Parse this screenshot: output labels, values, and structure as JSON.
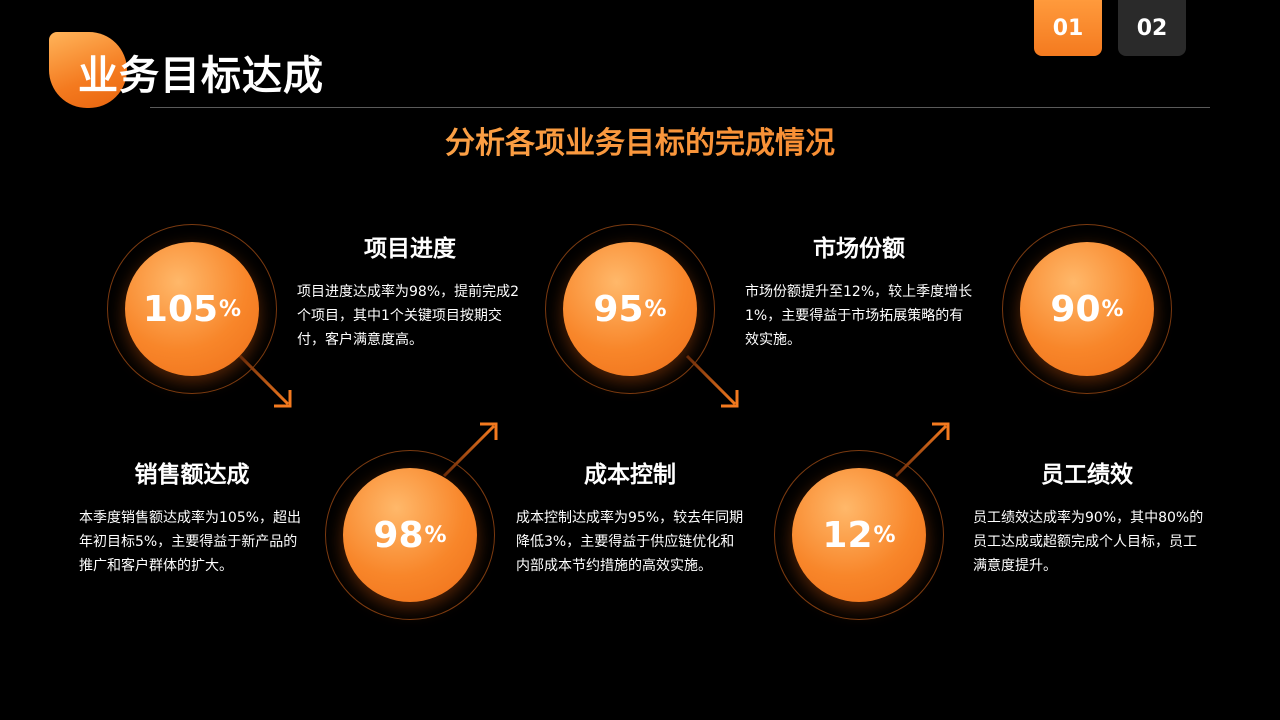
{
  "header": {
    "title": "业务目标达成",
    "subtitle": "分析各项业务目标的完成情况"
  },
  "tabs": [
    {
      "label": "01",
      "active": true
    },
    {
      "label": "02",
      "active": false
    }
  ],
  "colors": {
    "accent": "#f47a1f",
    "accent_light": "#ffb45a",
    "background": "#000000",
    "tab_inactive": "#2a2a2a"
  },
  "metrics": [
    {
      "value": "105",
      "unit": "%",
      "heading": "销售额达成",
      "text": "本季度销售额达成率为105%，超出年初目标5%，主要得益于新产品的推广和客户群体的扩大。"
    },
    {
      "value": "98",
      "unit": "%",
      "heading": "项目进度",
      "text": "项目进度达成率为98%，提前完成2个项目，其中1个关键项目按期交付，客户满意度高。"
    },
    {
      "value": "95",
      "unit": "%",
      "heading": "成本控制",
      "text": "成本控制达成率为95%，较去年同期降低3%，主要得益于供应链优化和内部成本节约措施的高效实施。"
    },
    {
      "value": "12",
      "unit": "%",
      "heading": "市场份额",
      "text": "市场份额提升至12%，较上季度增长1%，主要得益于市场拓展策略的有效实施。"
    },
    {
      "value": "90",
      "unit": "%",
      "heading": "员工绩效",
      "text": "员工绩效达成率为90%，其中80%的员工达成或超额完成个人目标，员工满意度提升。"
    }
  ]
}
